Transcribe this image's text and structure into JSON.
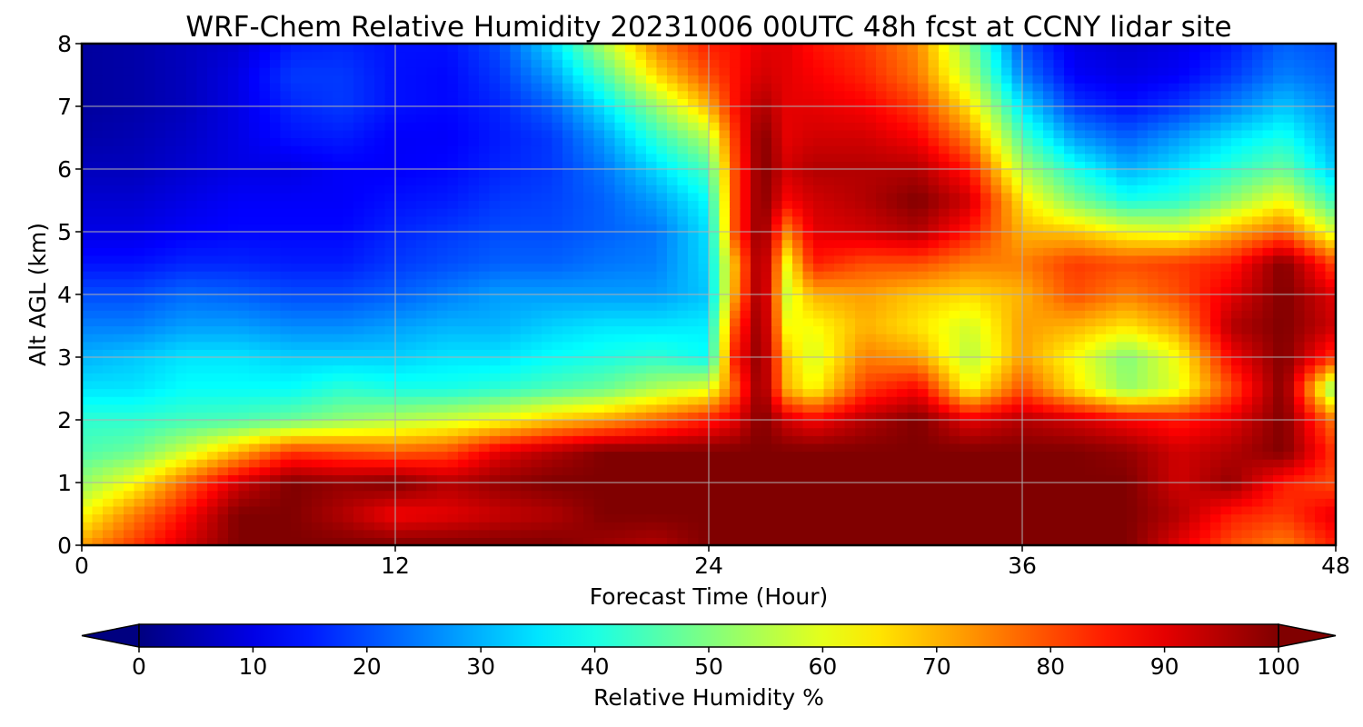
{
  "chart_data": {
    "type": "heatmap",
    "title": "WRF-Chem Relative Humidity 20231006 00UTC 48h fcst at CCNY lidar site",
    "xlabel": "Forecast Time (Hour)",
    "ylabel": "Alt AGL (km)",
    "xlim": [
      0,
      48
    ],
    "ylim": [
      0,
      8
    ],
    "x_ticks": [
      "0",
      "12",
      "24",
      "36",
      "48"
    ],
    "y_ticks": [
      "0",
      "1",
      "2",
      "3",
      "4",
      "5",
      "6",
      "7",
      "8"
    ],
    "grid": true,
    "colormap": "jet",
    "colorbar": {
      "label": "Relative Humidity %",
      "range": [
        0,
        100
      ],
      "ticks": [
        "0",
        "10",
        "20",
        "30",
        "40",
        "50",
        "60",
        "70",
        "80",
        "90",
        "100"
      ],
      "extend": "both",
      "orientation": "horizontal",
      "position": "bottom"
    },
    "x": [
      0,
      2,
      4,
      6,
      8,
      10,
      12,
      14,
      16,
      18,
      20,
      22,
      24,
      25,
      26,
      27,
      28,
      30,
      32,
      34,
      36,
      38,
      40,
      42,
      44,
      46,
      48
    ],
    "y": [
      0,
      0.5,
      1,
      1.5,
      2,
      2.5,
      3,
      3.5,
      4,
      4.5,
      5,
      5.5,
      6,
      6.5,
      7,
      7.5,
      8
    ],
    "rh": [
      [
        72,
        82,
        92,
        100,
        100,
        100,
        100,
        100,
        100,
        100,
        97,
        95,
        100,
        100,
        100,
        100,
        100,
        100,
        100,
        100,
        100,
        100,
        100,
        90,
        80,
        75,
        85
      ],
      [
        62,
        75,
        87,
        100,
        100,
        95,
        88,
        90,
        93,
        95,
        100,
        100,
        100,
        100,
        100,
        100,
        100,
        100,
        100,
        100,
        100,
        100,
        100,
        95,
        85,
        82,
        90
      ],
      [
        52,
        62,
        78,
        92,
        100,
        98,
        100,
        95,
        98,
        100,
        100,
        100,
        100,
        100,
        100,
        100,
        100,
        100,
        100,
        100,
        100,
        100,
        100,
        92,
        98,
        85,
        80
      ],
      [
        45,
        48,
        58,
        70,
        82,
        80,
        78,
        80,
        90,
        95,
        100,
        100,
        100,
        100,
        100,
        100,
        100,
        100,
        100,
        100,
        100,
        100,
        98,
        92,
        95,
        100,
        82
      ],
      [
        42,
        42,
        44,
        45,
        48,
        52,
        55,
        58,
        62,
        68,
        72,
        78,
        85,
        90,
        100,
        92,
        88,
        95,
        100,
        90,
        95,
        92,
        88,
        85,
        90,
        100,
        75
      ],
      [
        35,
        35,
        38,
        38,
        38,
        42,
        40,
        40,
        42,
        45,
        48,
        55,
        60,
        78,
        100,
        70,
        62,
        82,
        88,
        62,
        80,
        65,
        52,
        60,
        80,
        100,
        48
      ],
      [
        30,
        32,
        35,
        35,
        33,
        33,
        33,
        35,
        35,
        38,
        40,
        42,
        38,
        85,
        100,
        68,
        58,
        75,
        72,
        55,
        72,
        62,
        50,
        62,
        88,
        100,
        82
      ],
      [
        25,
        25,
        28,
        28,
        26,
        26,
        28,
        30,
        30,
        33,
        35,
        35,
        36,
        80,
        100,
        62,
        62,
        70,
        65,
        58,
        72,
        70,
        65,
        72,
        95,
        100,
        92
      ],
      [
        20,
        20,
        23,
        22,
        20,
        20,
        22,
        25,
        28,
        28,
        28,
        28,
        32,
        72,
        100,
        58,
        70,
        72,
        68,
        66,
        70,
        80,
        75,
        80,
        90,
        100,
        90
      ],
      [
        14,
        14,
        16,
        16,
        15,
        15,
        18,
        20,
        22,
        22,
        24,
        25,
        34,
        70,
        100,
        62,
        85,
        80,
        80,
        75,
        75,
        82,
        80,
        82,
        85,
        100,
        80
      ],
      [
        10,
        10,
        12,
        13,
        13,
        13,
        16,
        18,
        20,
        20,
        22,
        24,
        35,
        80,
        100,
        75,
        90,
        92,
        95,
        85,
        70,
        68,
        62,
        60,
        70,
        78,
        58
      ],
      [
        8,
        8,
        10,
        12,
        12,
        12,
        14,
        15,
        18,
        19,
        22,
        28,
        38,
        80,
        100,
        88,
        92,
        95,
        100,
        92,
        65,
        50,
        40,
        42,
        52,
        62,
        42
      ],
      [
        6,
        6,
        8,
        10,
        10,
        12,
        12,
        13,
        16,
        18,
        24,
        34,
        45,
        80,
        100,
        92,
        95,
        95,
        95,
        85,
        55,
        40,
        30,
        35,
        42,
        48,
        32
      ],
      [
        4,
        5,
        7,
        10,
        14,
        15,
        12,
        12,
        15,
        18,
        28,
        42,
        55,
        82,
        100,
        90,
        92,
        92,
        88,
        75,
        45,
        28,
        22,
        28,
        35,
        40,
        28
      ],
      [
        3,
        4,
        6,
        10,
        16,
        18,
        14,
        13,
        16,
        22,
        35,
        52,
        70,
        86,
        96,
        90,
        90,
        88,
        82,
        65,
        35,
        18,
        14,
        18,
        25,
        32,
        25
      ],
      [
        3,
        4,
        6,
        10,
        18,
        18,
        14,
        13,
        18,
        28,
        45,
        66,
        80,
        86,
        92,
        90,
        88,
        84,
        76,
        55,
        25,
        12,
        10,
        12,
        18,
        25,
        22
      ],
      [
        3,
        4,
        6,
        8,
        15,
        16,
        14,
        14,
        20,
        34,
        55,
        75,
        85,
        86,
        90,
        90,
        86,
        82,
        74,
        50,
        20,
        10,
        8,
        10,
        15,
        22,
        20
      ]
    ]
  }
}
